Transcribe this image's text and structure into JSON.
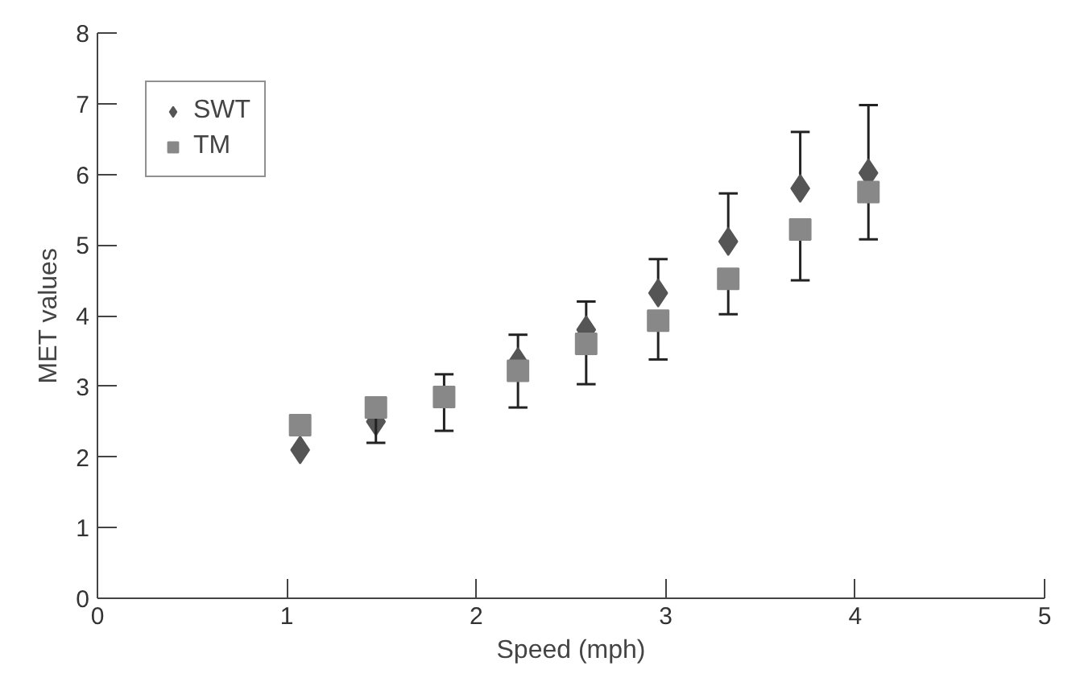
{
  "chart_data": {
    "type": "scatter",
    "xlabel": "Speed (mph)",
    "ylabel": "MET values",
    "xlim": [
      0,
      5
    ],
    "xticks": [
      0,
      1,
      2,
      3,
      4,
      5
    ],
    "ylim": [
      0,
      8
    ],
    "yticks": [
      0,
      1,
      2,
      3,
      4,
      5,
      6,
      7,
      8
    ],
    "grid": false,
    "legend": "top left",
    "series": [
      {
        "name": "SWT",
        "color": "#555555",
        "marker": "diamond",
        "x": [
          1.07,
          1.47,
          2.22,
          2.58,
          2.96,
          3.33,
          3.71,
          4.07
        ],
        "values": [
          2.1,
          2.5,
          3.35,
          3.8,
          4.32,
          5.05,
          5.8,
          6.02
        ],
        "errors": [
          null,
          null,
          [
            3.35,
            3.73
          ],
          [
            3.8,
            4.2
          ],
          [
            4.32,
            4.8
          ],
          [
            5.05,
            5.73
          ],
          [
            5.8,
            6.6
          ],
          [
            6.02,
            6.98
          ]
        ]
      },
      {
        "name": "TM",
        "color": "#888888",
        "marker": "square",
        "x": [
          1.07,
          1.47,
          1.83,
          2.22,
          2.58,
          2.96,
          3.33,
          3.71,
          4.07
        ],
        "values": [
          2.45,
          2.7,
          2.85,
          3.22,
          3.6,
          3.93,
          4.52,
          5.22,
          5.75
        ],
        "errors": [
          null,
          [
            2.2,
            2.7
          ],
          [
            2.37,
            3.17
          ],
          [
            2.7,
            3.22
          ],
          [
            3.03,
            3.6
          ],
          [
            3.38,
            3.93
          ],
          [
            4.02,
            4.52
          ],
          [
            4.5,
            5.22
          ],
          [
            5.08,
            5.75
          ]
        ]
      }
    ]
  }
}
